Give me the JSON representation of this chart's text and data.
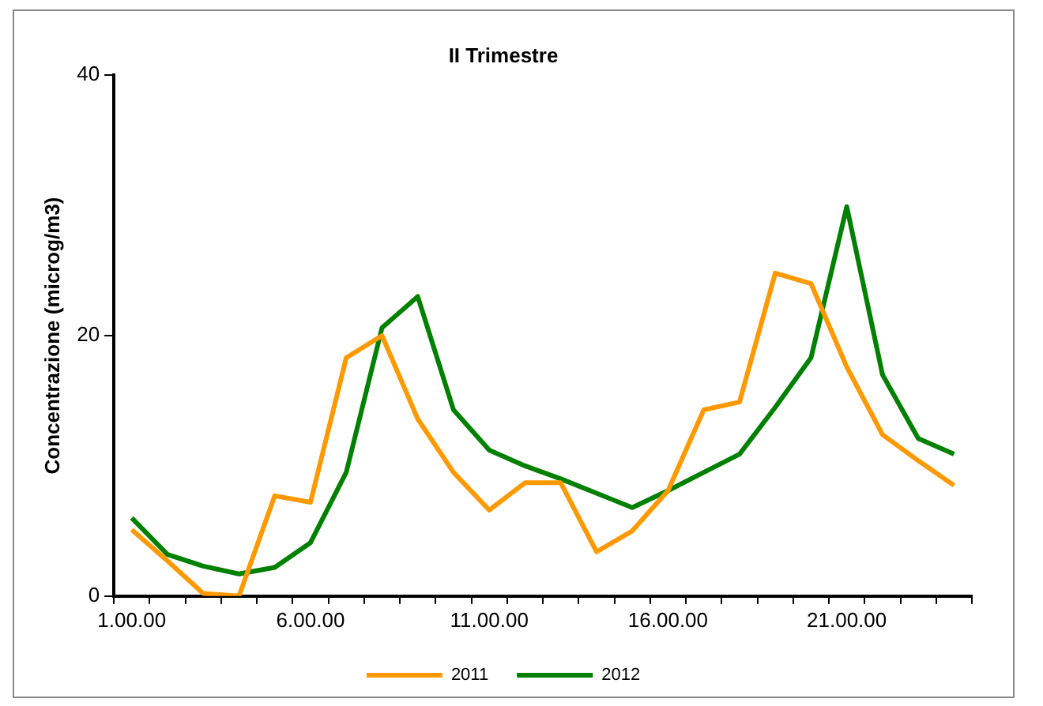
{
  "chart_data": {
    "type": "line",
    "title": "II Trimestre",
    "ylabel": "Concentrazione (microg/m3)",
    "categories": [
      "1.00.00",
      null,
      null,
      null,
      null,
      "6.00.00",
      null,
      null,
      null,
      null,
      "11.00.00",
      null,
      null,
      null,
      null,
      "16.00.00",
      null,
      null,
      null,
      null,
      "21.00.00",
      null,
      null,
      null
    ],
    "series": [
      {
        "name": "2011",
        "color": "#ff9900",
        "values": [
          5.1,
          2.7,
          0.2,
          0,
          7.7,
          7.2,
          18.3,
          20,
          13.6,
          9.5,
          6.6,
          8.7,
          8.7,
          3.4,
          5.0,
          8.1,
          14.3,
          14.9,
          24.8,
          24,
          17.6,
          12.4,
          10.4,
          8.5
        ]
      },
      {
        "name": "2012",
        "color": "#008000",
        "values": [
          6.0,
          3.2,
          2.3,
          1.7,
          2.2,
          4.1,
          9.5,
          20.6,
          23,
          14.3,
          11.2,
          10,
          9.0,
          7.9,
          6.8,
          8.1,
          9.5,
          10.9,
          14.5,
          18.3,
          29.9,
          17,
          12.1,
          10.9
        ]
      }
    ],
    "ylim": [
      0,
      40
    ],
    "yticks": [
      0,
      20,
      40
    ],
    "grid": false,
    "legend": "bottom",
    "marker": "none",
    "line_style": "solid"
  }
}
